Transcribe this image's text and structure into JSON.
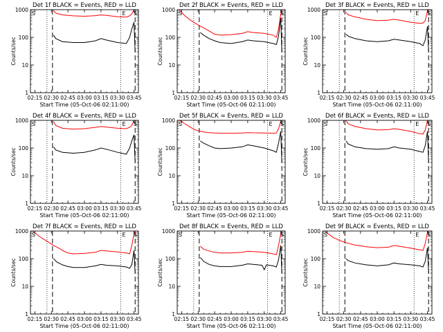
{
  "common": {
    "xlabel": "Start Time (05-Oct-06 02:11:00)",
    "ylabel": "Counts/sec",
    "x_tick_labels": [
      "02:15",
      "02:30",
      "02:45",
      "03:00",
      "03:15",
      "03:30",
      "03:45"
    ],
    "y_tick_labels": [
      "1",
      "10",
      "100",
      "1000"
    ],
    "marker_labels": [
      "S",
      "E",
      "S"
    ],
    "series_colors": {
      "events": "#000000",
      "lld": "#ff0000"
    }
  },
  "chart_data": [
    {
      "type": "line",
      "title": "Det 1f BLACK = Events, RED = LLD",
      "yscale": "log",
      "ylim": [
        1,
        1000
      ],
      "xlim": [
        "02:11",
        "03:49"
      ],
      "markers": {
        "dotted": [
          "02:26",
          "03:33"
        ],
        "dashed": [
          "02:31",
          "03:46"
        ]
      },
      "series": [
        {
          "key": "events",
          "x": [
            "02:32",
            "02:34",
            "02:40",
            "02:50",
            "03:00",
            "03:10",
            "03:15",
            "03:20",
            "03:30",
            "03:38",
            "03:41",
            "03:43",
            "03:45",
            "03:46"
          ],
          "values": [
            120,
            90,
            70,
            65,
            65,
            75,
            90,
            80,
            65,
            60,
            100,
            200,
            350,
            30
          ]
        },
        {
          "key": "lld",
          "x": [
            "02:32",
            "02:34",
            "02:40",
            "02:50",
            "03:00",
            "03:10",
            "03:15",
            "03:20",
            "03:30",
            "03:38",
            "03:41",
            "03:43",
            "03:45",
            "03:46"
          ],
          "values": [
            950,
            750,
            650,
            600,
            580,
            610,
            650,
            620,
            560,
            540,
            600,
            700,
            1000,
            1000
          ]
        }
      ]
    },
    {
      "type": "line",
      "title": "Det 2f BLACK = Events, RED = LLD",
      "yscale": "log",
      "ylim": [
        1,
        1000
      ],
      "xlim": [
        "02:11",
        "03:49"
      ],
      "markers": {
        "dotted": [
          "02:26",
          "03:33"
        ],
        "dashed": [
          "02:31",
          "03:46"
        ]
      },
      "series": [
        {
          "key": "events",
          "x": [
            "02:32",
            "02:35",
            "02:40",
            "02:45",
            "02:50",
            "03:00",
            "03:10",
            "03:15",
            "03:20",
            "03:30",
            "03:38",
            "03:41",
            "03:43",
            "03:45",
            "03:46"
          ],
          "values": [
            150,
            120,
            90,
            75,
            65,
            60,
            70,
            80,
            75,
            70,
            60,
            55,
            110,
            500,
            30
          ]
        },
        {
          "key": "lld",
          "x": [
            "02:13",
            "02:15",
            "02:18",
            "02:22",
            "02:26",
            "02:30",
            "02:35",
            "02:40",
            "02:45",
            "02:50",
            "03:00",
            "03:10",
            "03:15",
            "03:20",
            "03:30",
            "03:38",
            "03:41",
            "03:43",
            "03:45",
            "03:46"
          ],
          "values": [
            1000,
            800,
            600,
            450,
            350,
            280,
            220,
            170,
            130,
            120,
            125,
            140,
            160,
            150,
            140,
            120,
            100,
            200,
            700,
            1000
          ]
        }
      ]
    },
    {
      "type": "line",
      "title": "Det 3f BLACK = Events, RED = LLD",
      "yscale": "log",
      "ylim": [
        1,
        1000
      ],
      "xlim": [
        "02:11",
        "03:49"
      ],
      "markers": {
        "dotted": [
          "02:26",
          "03:33"
        ],
        "dashed": [
          "02:31",
          "03:46"
        ]
      },
      "series": [
        {
          "key": "events",
          "x": [
            "02:32",
            "02:34",
            "02:40",
            "02:50",
            "03:00",
            "03:10",
            "03:15",
            "03:20",
            "03:30",
            "03:38",
            "03:41",
            "03:43",
            "03:45",
            "03:46"
          ],
          "values": [
            130,
            110,
            90,
            75,
            70,
            75,
            85,
            80,
            70,
            60,
            50,
            80,
            250,
            30
          ]
        },
        {
          "key": "lld",
          "x": [
            "02:32",
            "02:34",
            "02:40",
            "02:50",
            "03:00",
            "03:10",
            "03:15",
            "03:20",
            "03:30",
            "03:38",
            "03:41",
            "03:43",
            "03:45",
            "03:46"
          ],
          "values": [
            800,
            650,
            550,
            450,
            400,
            420,
            450,
            420,
            350,
            320,
            330,
            400,
            900,
            1000
          ]
        }
      ]
    },
    {
      "type": "line",
      "title": "Det 4f BLACK = Events, RED = LLD",
      "yscale": "log",
      "ylim": [
        1,
        1000
      ],
      "xlim": [
        "02:11",
        "03:49"
      ],
      "markers": {
        "dotted": [
          "02:26",
          "03:33"
        ],
        "dashed": [
          "02:31",
          "03:46"
        ]
      },
      "series": [
        {
          "key": "events",
          "x": [
            "02:32",
            "02:34",
            "02:40",
            "02:50",
            "03:00",
            "03:10",
            "03:15",
            "03:20",
            "03:30",
            "03:38",
            "03:41",
            "03:43",
            "03:45",
            "03:46"
          ],
          "values": [
            110,
            85,
            70,
            65,
            70,
            85,
            100,
            90,
            70,
            60,
            100,
            180,
            300,
            30
          ]
        },
        {
          "key": "lld",
          "x": [
            "02:32",
            "02:34",
            "02:40",
            "02:50",
            "03:00",
            "03:10",
            "03:15",
            "03:20",
            "03:30",
            "03:38",
            "03:41",
            "03:43",
            "03:45",
            "03:46"
          ],
          "values": [
            900,
            650,
            520,
            480,
            500,
            560,
            600,
            570,
            520,
            500,
            560,
            650,
            1000,
            1000
          ]
        }
      ]
    },
    {
      "type": "line",
      "title": "Det 5f BLACK = Events, RED = LLD",
      "yscale": "log",
      "ylim": [
        1,
        1000
      ],
      "xlim": [
        "02:11",
        "03:49"
      ],
      "markers": {
        "dotted": [
          "02:26",
          "03:33"
        ],
        "dashed": [
          "02:31",
          "03:46"
        ]
      },
      "series": [
        {
          "key": "events",
          "x": [
            "02:32",
            "02:35",
            "02:40",
            "02:45",
            "02:50",
            "03:00",
            "03:10",
            "03:15",
            "03:20",
            "03:30",
            "03:38",
            "03:41",
            "03:43",
            "03:45",
            "03:46"
          ],
          "values": [
            180,
            150,
            120,
            100,
            95,
            100,
            110,
            130,
            120,
            100,
            80,
            70,
            150,
            400,
            30
          ]
        },
        {
          "key": "lld",
          "x": [
            "02:13",
            "02:15",
            "02:18",
            "02:22",
            "02:26",
            "02:30",
            "02:35",
            "02:40",
            "02:45",
            "02:50",
            "03:00",
            "03:10",
            "03:15",
            "03:20",
            "03:30",
            "03:38",
            "03:41",
            "03:43",
            "03:45",
            "03:46"
          ],
          "values": [
            1000,
            900,
            750,
            600,
            480,
            420,
            380,
            360,
            350,
            345,
            340,
            350,
            360,
            355,
            350,
            340,
            350,
            500,
            900,
            1000
          ]
        }
      ]
    },
    {
      "type": "line",
      "title": "Det 6f BLACK = Events, RED = LLD",
      "yscale": "log",
      "ylim": [
        1,
        1000
      ],
      "xlim": [
        "02:11",
        "03:49"
      ],
      "markers": {
        "dotted": [
          "02:26",
          "03:33"
        ],
        "dashed": [
          "02:31",
          "03:46"
        ]
      },
      "series": [
        {
          "key": "events",
          "x": [
            "02:32",
            "02:34",
            "02:40",
            "02:50",
            "03:00",
            "03:10",
            "03:15",
            "03:20",
            "03:30",
            "03:38",
            "03:41",
            "03:43",
            "03:45",
            "03:46"
          ],
          "values": [
            180,
            140,
            110,
            95,
            90,
            95,
            110,
            100,
            90,
            75,
            70,
            120,
            400,
            30
          ]
        },
        {
          "key": "lld",
          "x": [
            "02:32",
            "02:34",
            "02:40",
            "02:50",
            "03:00",
            "03:10",
            "03:15",
            "03:20",
            "03:30",
            "03:38",
            "03:41",
            "03:43",
            "03:45",
            "03:46"
          ],
          "values": [
            1000,
            750,
            600,
            500,
            450,
            460,
            500,
            470,
            400,
            330,
            320,
            450,
            1000,
            1000
          ]
        }
      ]
    },
    {
      "type": "line",
      "title": "Det 7f BLACK = Events, RED = LLD",
      "yscale": "log",
      "ylim": [
        1,
        1000
      ],
      "xlim": [
        "02:11",
        "03:49"
      ],
      "markers": {
        "dotted": [
          "02:26",
          "03:33"
        ],
        "dashed": [
          "02:31",
          "03:46"
        ]
      },
      "series": [
        {
          "key": "events",
          "x": [
            "02:32",
            "02:35",
            "02:40",
            "02:45",
            "02:50",
            "03:00",
            "03:10",
            "03:15",
            "03:20",
            "03:30",
            "03:38",
            "03:41",
            "03:43",
            "03:45",
            "03:46"
          ],
          "values": [
            100,
            75,
            60,
            52,
            48,
            48,
            55,
            62,
            58,
            55,
            50,
            45,
            60,
            200,
            30
          ]
        },
        {
          "key": "lld",
          "x": [
            "02:13",
            "02:16",
            "02:20",
            "02:24",
            "02:28",
            "02:32",
            "02:36",
            "02:40",
            "02:45",
            "02:50",
            "03:00",
            "03:10",
            "03:15",
            "03:20",
            "03:30",
            "03:38",
            "03:41",
            "03:43",
            "03:45",
            "03:46"
          ],
          "values": [
            1000,
            800,
            600,
            480,
            380,
            300,
            250,
            200,
            160,
            150,
            155,
            170,
            200,
            190,
            175,
            160,
            150,
            300,
            800,
            1000
          ]
        }
      ]
    },
    {
      "type": "line",
      "title": "Det 8f BLACK = Events, RED = LLD",
      "yscale": "log",
      "ylim": [
        1,
        1000
      ],
      "xlim": [
        "02:11",
        "03:49"
      ],
      "markers": {
        "dotted": [
          "02:26",
          "03:33"
        ],
        "dashed": [
          "02:31",
          "03:46"
        ]
      },
      "series": [
        {
          "key": "events",
          "x": [
            "02:32",
            "02:35",
            "02:40",
            "02:45",
            "02:50",
            "03:00",
            "03:10",
            "03:15",
            "03:20",
            "03:28",
            "03:30",
            "03:32",
            "03:38",
            "03:41",
            "03:43",
            "03:45",
            "03:46"
          ],
          "values": [
            110,
            80,
            62,
            55,
            52,
            52,
            58,
            65,
            62,
            58,
            40,
            60,
            55,
            50,
            90,
            300,
            30
          ]
        },
        {
          "key": "lld",
          "x": [
            "02:32",
            "02:35",
            "02:40",
            "02:45",
            "02:50",
            "03:00",
            "03:10",
            "03:15",
            "03:20",
            "03:30",
            "03:38",
            "03:41",
            "03:43",
            "03:45",
            "03:46"
          ],
          "values": [
            280,
            220,
            190,
            170,
            160,
            160,
            170,
            185,
            180,
            170,
            150,
            140,
            300,
            800,
            1000
          ]
        }
      ]
    },
    {
      "type": "line",
      "title": "Det 9f BLACK = Events, RED = LLD",
      "yscale": "log",
      "ylim": [
        1,
        1000
      ],
      "xlim": [
        "02:11",
        "03:49"
      ],
      "markers": {
        "dotted": [
          "02:26",
          "03:33"
        ],
        "dashed": [
          "02:31",
          "03:46"
        ]
      },
      "series": [
        {
          "key": "events",
          "x": [
            "02:32",
            "02:34",
            "02:40",
            "02:50",
            "03:00",
            "03:10",
            "03:15",
            "03:20",
            "03:30",
            "03:38",
            "03:41",
            "03:43",
            "03:45",
            "03:46"
          ],
          "values": [
            100,
            85,
            70,
            60,
            55,
            60,
            70,
            65,
            60,
            55,
            50,
            80,
            250,
            30
          ]
        },
        {
          "key": "lld",
          "x": [
            "02:13",
            "02:16",
            "02:20",
            "02:25",
            "02:30",
            "02:35",
            "02:40",
            "02:50",
            "03:00",
            "03:10",
            "03:15",
            "03:20",
            "03:30",
            "03:38",
            "03:41",
            "03:43",
            "03:45",
            "03:46"
          ],
          "values": [
            1000,
            800,
            600,
            480,
            400,
            350,
            310,
            270,
            250,
            260,
            300,
            280,
            240,
            210,
            200,
            350,
            900,
            1000
          ]
        }
      ]
    }
  ]
}
